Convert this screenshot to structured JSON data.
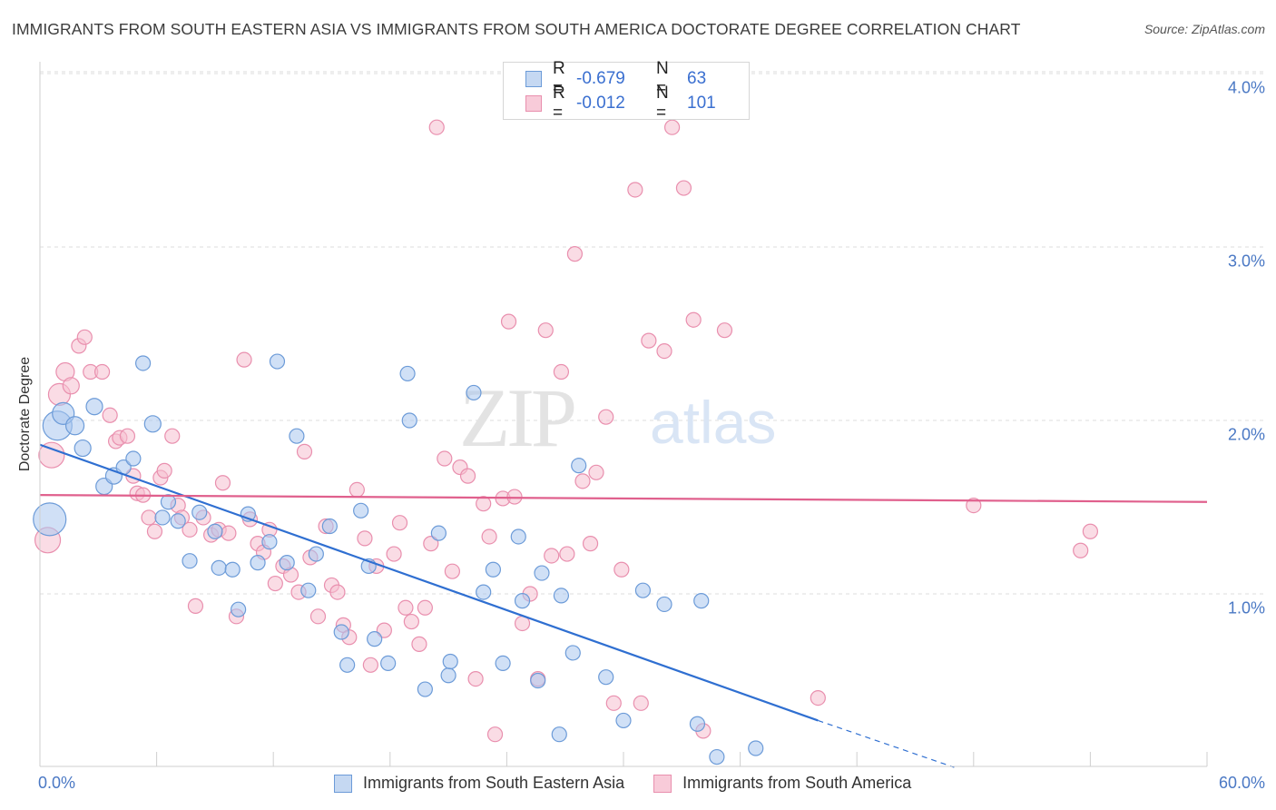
{
  "title": "IMMIGRANTS FROM SOUTH EASTERN ASIA VS IMMIGRANTS FROM SOUTH AMERICA DOCTORATE DEGREE CORRELATION CHART",
  "source": "Source: ZipAtlas.com",
  "watermark": "ZIPatlas",
  "legend": {
    "rows": [
      {
        "r_label": "R =",
        "r_value": "-0.679",
        "n_label": "N =",
        "n_value": "63"
      },
      {
        "r_label": "R =",
        "r_value": "-0.012",
        "n_label": "N =",
        "n_value": "101"
      }
    ]
  },
  "chart_data": {
    "type": "scatter",
    "title": "IMMIGRANTS FROM SOUTH EASTERN ASIA VS IMMIGRANTS FROM SOUTH AMERICA DOCTORATE DEGREE CORRELATION CHART",
    "xlabel": "",
    "ylabel": "Doctorate Degree",
    "xlim": [
      0,
      60
    ],
    "ylim": [
      0,
      4.2
    ],
    "x_tick_labels": [
      "0.0%",
      "60.0%"
    ],
    "y_ticks": [
      1.0,
      2.0,
      3.0,
      4.0
    ],
    "y_tick_labels": [
      "1.0%",
      "2.0%",
      "3.0%",
      "4.0%"
    ],
    "grid": true,
    "series": [
      {
        "name": "Immigrants from South Eastern Asia",
        "color": "#6c9bd8",
        "fill": "#a9c6ee",
        "line_color": "#2f6fd1",
        "trend": {
          "x0": 0,
          "y0": 1.86,
          "x1": 40,
          "y1": 0.27,
          "dash_to_x": 47,
          "dash_to_y": 0.0
        },
        "points": [
          [
            0.5,
            1.43,
            18
          ],
          [
            0.9,
            1.97,
            16
          ],
          [
            1.2,
            2.04,
            12
          ],
          [
            1.8,
            1.97,
            10
          ],
          [
            2.2,
            1.84,
            9
          ],
          [
            2.8,
            2.08,
            9
          ],
          [
            3.3,
            1.62,
            9
          ],
          [
            3.8,
            1.68,
            9
          ],
          [
            4.3,
            1.73,
            8
          ],
          [
            4.8,
            1.78,
            8
          ],
          [
            5.3,
            2.33,
            8
          ],
          [
            5.8,
            1.98,
            9
          ],
          [
            6.3,
            1.44,
            8
          ],
          [
            6.6,
            1.53,
            8
          ],
          [
            7.1,
            1.42,
            8
          ],
          [
            7.7,
            1.19,
            8
          ],
          [
            8.2,
            1.47,
            8
          ],
          [
            9.0,
            1.36,
            8
          ],
          [
            9.2,
            1.15,
            8
          ],
          [
            9.9,
            1.14,
            8
          ],
          [
            10.2,
            0.91,
            8
          ],
          [
            10.7,
            1.46,
            8
          ],
          [
            11.2,
            1.18,
            8
          ],
          [
            11.8,
            1.3,
            8
          ],
          [
            12.2,
            2.34,
            8
          ],
          [
            12.7,
            1.18,
            8
          ],
          [
            13.2,
            1.91,
            8
          ],
          [
            13.8,
            1.02,
            8
          ],
          [
            14.2,
            1.23,
            8
          ],
          [
            14.9,
            1.39,
            8
          ],
          [
            15.5,
            0.78,
            8
          ],
          [
            15.8,
            0.59,
            8
          ],
          [
            16.5,
            1.48,
            8
          ],
          [
            16.9,
            1.16,
            8
          ],
          [
            17.2,
            0.74,
            8
          ],
          [
            17.9,
            0.6,
            8
          ],
          [
            18.9,
            2.27,
            8
          ],
          [
            19.0,
            2.0,
            8
          ],
          [
            19.8,
            0.45,
            8
          ],
          [
            20.5,
            1.35,
            8
          ],
          [
            21.0,
            0.53,
            8
          ],
          [
            21.1,
            0.61,
            8
          ],
          [
            22.3,
            2.16,
            8
          ],
          [
            22.8,
            1.01,
            8
          ],
          [
            23.3,
            1.14,
            8
          ],
          [
            23.8,
            0.6,
            8
          ],
          [
            24.6,
            1.33,
            8
          ],
          [
            24.8,
            0.96,
            8
          ],
          [
            25.6,
            0.5,
            8
          ],
          [
            25.8,
            1.12,
            8
          ],
          [
            26.7,
            0.19,
            8
          ],
          [
            26.8,
            0.99,
            8
          ],
          [
            27.4,
            0.66,
            8
          ],
          [
            27.7,
            1.74,
            8
          ],
          [
            29.1,
            0.52,
            8
          ],
          [
            30.0,
            0.27,
            8
          ],
          [
            31.0,
            1.02,
            8
          ],
          [
            32.1,
            0.94,
            8
          ],
          [
            33.8,
            0.25,
            8
          ],
          [
            34.0,
            0.96,
            8
          ],
          [
            34.8,
            0.06,
            8
          ],
          [
            36.8,
            0.11,
            8
          ]
        ]
      },
      {
        "name": "Immigrants from South America",
        "color": "#e98fae",
        "fill": "#f5bfd0",
        "line_color": "#e0608d",
        "trend": {
          "x0": 0,
          "y0": 1.57,
          "x1": 60,
          "y1": 1.53
        },
        "points": [
          [
            0.4,
            1.31,
            14
          ],
          [
            0.6,
            1.8,
            14
          ],
          [
            1.0,
            2.15,
            12
          ],
          [
            1.3,
            2.28,
            10
          ],
          [
            1.6,
            2.2,
            9
          ],
          [
            2.0,
            2.43,
            8
          ],
          [
            2.3,
            2.48,
            8
          ],
          [
            2.6,
            2.28,
            8
          ],
          [
            3.2,
            2.28,
            8
          ],
          [
            3.6,
            2.03,
            8
          ],
          [
            3.9,
            1.88,
            8
          ],
          [
            4.1,
            1.9,
            8
          ],
          [
            4.5,
            1.91,
            8
          ],
          [
            4.8,
            1.68,
            8
          ],
          [
            5.0,
            1.58,
            8
          ],
          [
            5.3,
            1.57,
            8
          ],
          [
            5.6,
            1.44,
            8
          ],
          [
            5.9,
            1.36,
            8
          ],
          [
            6.2,
            1.67,
            8
          ],
          [
            6.4,
            1.71,
            8
          ],
          [
            6.8,
            1.91,
            8
          ],
          [
            7.1,
            1.51,
            8
          ],
          [
            7.3,
            1.44,
            8
          ],
          [
            7.7,
            1.37,
            8
          ],
          [
            8.0,
            0.93,
            8
          ],
          [
            8.4,
            1.44,
            8
          ],
          [
            8.8,
            1.34,
            8
          ],
          [
            9.2,
            1.37,
            8
          ],
          [
            9.4,
            1.64,
            8
          ],
          [
            9.7,
            1.35,
            8
          ],
          [
            10.1,
            0.87,
            8
          ],
          [
            10.5,
            2.35,
            8
          ],
          [
            10.8,
            1.43,
            8
          ],
          [
            11.2,
            1.29,
            8
          ],
          [
            11.5,
            1.24,
            8
          ],
          [
            11.8,
            1.37,
            8
          ],
          [
            12.1,
            1.06,
            8
          ],
          [
            12.5,
            1.16,
            8
          ],
          [
            12.9,
            1.11,
            8
          ],
          [
            13.3,
            1.01,
            8
          ],
          [
            13.6,
            1.82,
            8
          ],
          [
            13.9,
            1.21,
            8
          ],
          [
            14.3,
            0.87,
            8
          ],
          [
            14.7,
            1.39,
            8
          ],
          [
            15.0,
            1.05,
            8
          ],
          [
            15.3,
            1.01,
            8
          ],
          [
            15.6,
            0.82,
            8
          ],
          [
            15.9,
            0.75,
            8
          ],
          [
            16.3,
            1.6,
            8
          ],
          [
            16.7,
            1.32,
            8
          ],
          [
            17.0,
            0.59,
            8
          ],
          [
            17.3,
            1.16,
            8
          ],
          [
            17.7,
            0.79,
            8
          ],
          [
            18.2,
            1.23,
            8
          ],
          [
            18.5,
            1.41,
            8
          ],
          [
            18.8,
            0.92,
            8
          ],
          [
            19.1,
            0.84,
            8
          ],
          [
            19.5,
            0.71,
            8
          ],
          [
            19.8,
            0.92,
            8
          ],
          [
            20.1,
            1.29,
            8
          ],
          [
            20.4,
            3.69,
            8
          ],
          [
            20.8,
            1.78,
            8
          ],
          [
            21.2,
            1.13,
            8
          ],
          [
            21.6,
            1.73,
            8
          ],
          [
            22.0,
            1.68,
            8
          ],
          [
            22.4,
            0.51,
            8
          ],
          [
            22.8,
            1.52,
            8
          ],
          [
            23.1,
            1.33,
            8
          ],
          [
            23.4,
            0.19,
            8
          ],
          [
            23.8,
            1.55,
            8
          ],
          [
            24.1,
            2.57,
            8
          ],
          [
            24.4,
            1.56,
            8
          ],
          [
            24.8,
            0.83,
            8
          ],
          [
            25.2,
            1.0,
            8
          ],
          [
            25.6,
            0.51,
            8
          ],
          [
            26.0,
            2.52,
            8
          ],
          [
            26.3,
            1.22,
            8
          ],
          [
            26.8,
            2.28,
            8
          ],
          [
            27.1,
            1.23,
            8
          ],
          [
            27.5,
            2.96,
            8
          ],
          [
            27.9,
            1.65,
            8
          ],
          [
            28.3,
            1.29,
            8
          ],
          [
            28.6,
            1.7,
            8
          ],
          [
            29.1,
            2.02,
            8
          ],
          [
            29.5,
            0.37,
            8
          ],
          [
            29.9,
            1.14,
            8
          ],
          [
            30.6,
            3.33,
            8
          ],
          [
            30.9,
            0.37,
            8
          ],
          [
            31.3,
            2.46,
            8
          ],
          [
            32.1,
            2.4,
            8
          ],
          [
            32.5,
            3.69,
            8
          ],
          [
            33.1,
            3.34,
            8
          ],
          [
            33.6,
            2.58,
            8
          ],
          [
            34.1,
            0.21,
            8
          ],
          [
            35.2,
            2.52,
            8
          ],
          [
            40.0,
            0.4,
            8
          ],
          [
            48.0,
            1.51,
            8
          ],
          [
            53.5,
            1.25,
            8
          ],
          [
            54.0,
            1.36,
            8
          ]
        ]
      }
    ]
  }
}
